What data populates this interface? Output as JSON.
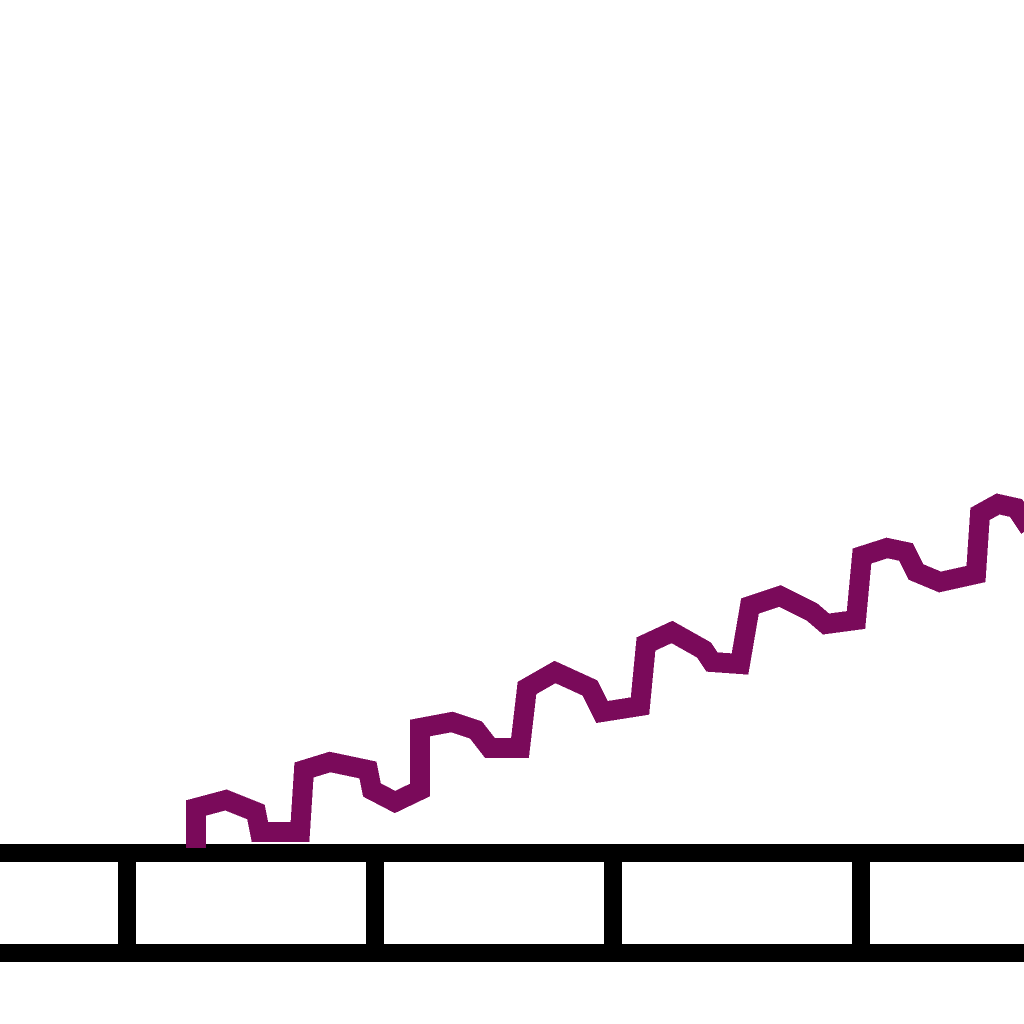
{
  "scene": {
    "background_color": "#ffffff",
    "ground": {
      "kind": "rail-track",
      "color": "#000000",
      "rail_count": 2,
      "post_count": 4
    },
    "wave": {
      "kind": "rising-zigzag-wave",
      "color": "#7a0a5a",
      "crest_count": 8
    }
  }
}
